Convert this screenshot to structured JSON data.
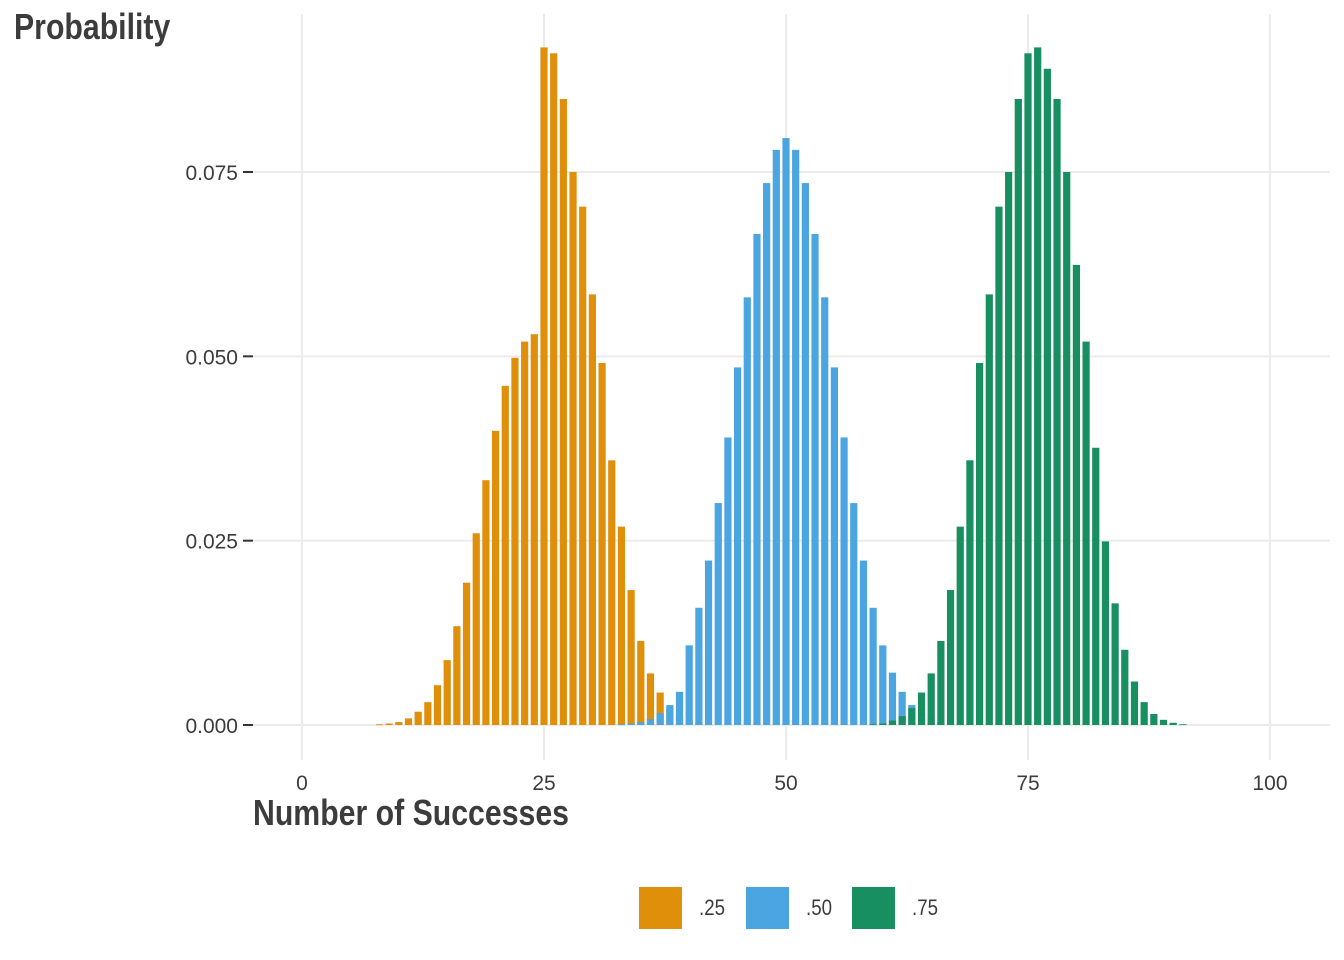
{
  "chart_data": {
    "type": "bar",
    "ylabel": "Probability",
    "xlabel": "Number of Successes",
    "n": 100,
    "x": [
      0,
      1,
      2,
      3,
      4,
      5,
      6,
      7,
      8,
      9,
      10,
      11,
      12,
      13,
      14,
      15,
      16,
      17,
      18,
      19,
      20,
      21,
      22,
      23,
      24,
      25,
      26,
      27,
      28,
      29,
      30,
      31,
      32,
      33,
      34,
      35,
      36,
      37,
      38,
      39,
      40,
      41,
      42,
      43,
      44,
      45,
      46,
      47,
      48,
      49,
      50,
      51,
      52,
      53,
      54,
      55,
      56,
      57,
      58,
      59,
      60,
      61,
      62,
      63,
      64,
      65,
      66,
      67,
      68,
      69,
      70,
      71,
      72,
      73,
      74,
      75,
      76,
      77,
      78,
      79,
      80,
      81,
      82,
      83,
      84,
      85,
      86,
      87,
      88,
      89,
      90,
      91,
      92,
      93,
      94,
      95,
      96,
      97,
      98,
      99,
      100
    ],
    "series": [
      {
        "name": ".25",
        "color": "#E08F0B",
        "values": [
          0,
          0,
          0,
          0,
          0,
          0,
          0,
          0,
          0.0001,
          0.0002,
          0.0004,
          0.0009,
          0.0018,
          0.0031,
          0.0054,
          0.0088,
          0.0134,
          0.0193,
          0.026,
          0.0332,
          0.0399,
          0.046,
          0.0498,
          0.052,
          0.053,
          0.0919,
          0.0911,
          0.0849,
          0.075,
          0.0703,
          0.0584,
          0.0491,
          0.0359,
          0.0269,
          0.0183,
          0.0114,
          0.007,
          0.0044,
          0.0023,
          0.0012,
          0.0006,
          0.0002,
          0.0001,
          0,
          0,
          0,
          0,
          0,
          0,
          0,
          0,
          0,
          0,
          0,
          0,
          0,
          0,
          0,
          0,
          0,
          0,
          0,
          0,
          0,
          0,
          0,
          0,
          0,
          0,
          0,
          0,
          0,
          0,
          0,
          0,
          0,
          0,
          0,
          0,
          0,
          0,
          0,
          0,
          0,
          0,
          0,
          0,
          0,
          0,
          0,
          0,
          0,
          0,
          0,
          0,
          0,
          0,
          0,
          0,
          0,
          0
        ]
      },
      {
        "name": ".50",
        "color": "#4AA5E0",
        "values": [
          0,
          0,
          0,
          0,
          0,
          0,
          0,
          0,
          0,
          0,
          0,
          0,
          0,
          0,
          0,
          0,
          0,
          0,
          0,
          0,
          0,
          0,
          0,
          0,
          0,
          0,
          0,
          0,
          0,
          0,
          0,
          0,
          0,
          0.0001,
          0.0002,
          0.0004,
          0.0008,
          0.0016,
          0.0027,
          0.0045,
          0.0108,
          0.0159,
          0.0223,
          0.0301,
          0.039,
          0.0485,
          0.058,
          0.0666,
          0.0735,
          0.078,
          0.0796,
          0.078,
          0.0735,
          0.0666,
          0.058,
          0.0485,
          0.039,
          0.0301,
          0.0223,
          0.0159,
          0.0108,
          0.0071,
          0.0045,
          0.0027,
          0.0016,
          0.0008,
          0.0004,
          0.0002,
          0.0001,
          0,
          0,
          0,
          0,
          0,
          0,
          0,
          0,
          0,
          0,
          0,
          0,
          0,
          0,
          0,
          0,
          0,
          0,
          0,
          0,
          0,
          0,
          0,
          0,
          0,
          0,
          0,
          0,
          0,
          0,
          0,
          0
        ]
      },
      {
        "name": ".75",
        "color": "#178F60",
        "values": [
          0,
          0,
          0,
          0,
          0,
          0,
          0,
          0,
          0,
          0,
          0,
          0,
          0,
          0,
          0,
          0,
          0,
          0,
          0,
          0,
          0,
          0,
          0,
          0,
          0,
          0,
          0,
          0,
          0,
          0,
          0,
          0,
          0,
          0,
          0,
          0,
          0,
          0,
          0,
          0,
          0,
          0,
          0,
          0,
          0,
          0,
          0,
          0,
          0,
          0,
          0,
          0,
          0,
          0,
          0,
          0,
          0,
          0,
          0,
          0.0001,
          0.0002,
          0.0006,
          0.0012,
          0.0023,
          0.0044,
          0.007,
          0.0114,
          0.0183,
          0.0269,
          0.0359,
          0.0491,
          0.0584,
          0.0703,
          0.075,
          0.0849,
          0.0911,
          0.0919,
          0.089,
          0.0849,
          0.075,
          0.0624,
          0.052,
          0.0376,
          0.0249,
          0.0165,
          0.0102,
          0.0059,
          0.0031,
          0.0015,
          0.0007,
          0.0003,
          0.0001,
          0,
          0,
          0,
          0,
          0,
          0,
          0,
          0,
          0
        ]
      }
    ],
    "xlim": [
      0,
      100
    ],
    "ylim": [
      0,
      0.09
    ],
    "xticks": [
      "0",
      "25",
      "50",
      "75",
      "100"
    ],
    "yticks": [
      "0.000",
      "0.025",
      "0.050",
      "0.075"
    ],
    "grid": true,
    "legend_position": "bottom"
  }
}
